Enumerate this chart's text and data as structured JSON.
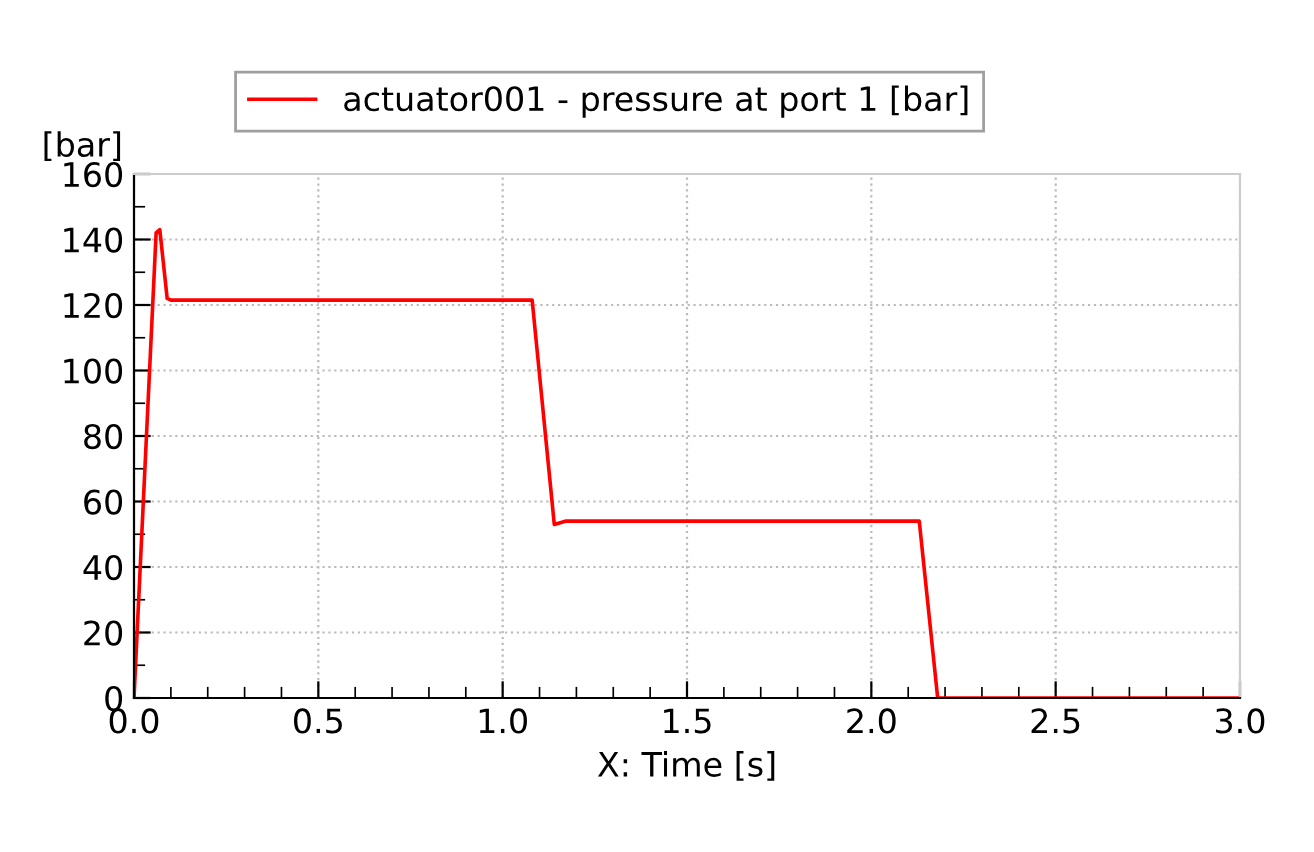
{
  "chart_data": {
    "type": "line",
    "xlabel": "X: Time [s]",
    "ylabel": "[bar]",
    "series": [
      {
        "name": "actuator001 - pressure at port 1 [bar]",
        "color": "#ff0000",
        "x": [
          0,
          0.06,
          0.07,
          0.09,
          0.1,
          0.5,
          1.0,
          1.08,
          1.14,
          1.17,
          1.5,
          2.0,
          2.13,
          2.18,
          2.5,
          3.0
        ],
        "values": [
          0,
          142,
          143,
          122,
          121.5,
          121.5,
          121.5,
          121.5,
          53,
          54,
          54,
          54,
          54,
          0,
          0,
          0
        ]
      }
    ],
    "xlim": [
      0,
      3
    ],
    "xticks": [
      {
        "value": 0,
        "label": "0.0"
      },
      {
        "value": 0.5,
        "label": "0.5"
      },
      {
        "value": 1,
        "label": "1.0"
      },
      {
        "value": 1.5,
        "label": "1.5"
      },
      {
        "value": 2,
        "label": "2.0"
      },
      {
        "value": 2.5,
        "label": "2.5"
      },
      {
        "value": 3,
        "label": "3.0"
      }
    ],
    "ylim": [
      0,
      160
    ],
    "yticks": [
      0,
      20,
      40,
      60,
      80,
      100,
      120,
      140,
      160
    ],
    "grid": true,
    "legend": "top",
    "line_style": "solid",
    "marker": "none"
  }
}
